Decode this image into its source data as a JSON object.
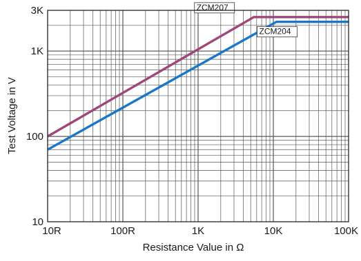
{
  "chart_data": {
    "type": "line",
    "title": "",
    "xlabel": "Resistance Value in Ω",
    "ylabel": "Test Voltage in V",
    "x_scale": "log",
    "y_scale": "log",
    "xlim": [
      10,
      100000
    ],
    "ylim": [
      10,
      3000
    ],
    "grid": true,
    "x_ticks": [
      {
        "value": 10,
        "label": "10R"
      },
      {
        "value": 100,
        "label": "100R"
      },
      {
        "value": 1000,
        "label": "1K"
      },
      {
        "value": 10000,
        "label": "10K"
      },
      {
        "value": 100000,
        "label": "100K"
      }
    ],
    "y_ticks": [
      {
        "value": 10,
        "label": "10"
      },
      {
        "value": 100,
        "label": "100"
      },
      {
        "value": 1000,
        "label": "1K"
      },
      {
        "value": 3000,
        "label": "3K"
      }
    ],
    "series": [
      {
        "name": "ZCM207",
        "color": "#a0477a",
        "x": [
          10,
          5500,
          100000
        ],
        "y": [
          100,
          2500,
          2500
        ]
      },
      {
        "name": "ZCM204",
        "color": "#1877c9",
        "x": [
          10,
          11000,
          100000
        ],
        "y": [
          70,
          2200,
          2200
        ]
      }
    ]
  }
}
